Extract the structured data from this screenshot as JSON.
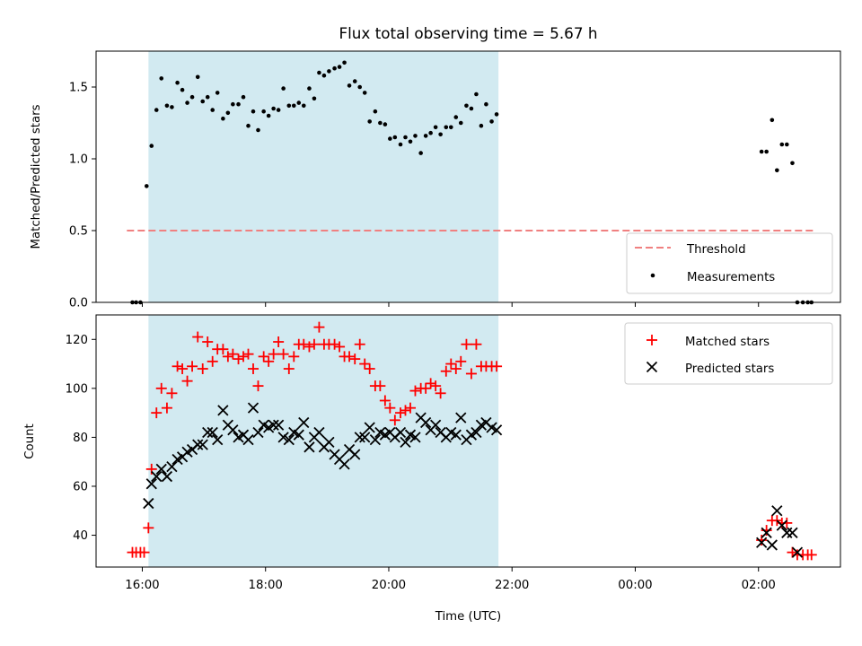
{
  "chart_data": {
    "type": "scatter",
    "title": "Flux total observing time = 5.67 h",
    "xlabel": "Time (UTC)",
    "x_unit": "hours",
    "xlim": [
      15.25,
      27.33
    ],
    "x_ticks": [
      {
        "value": 16,
        "label": "16:00"
      },
      {
        "value": 18,
        "label": "18:00"
      },
      {
        "value": 20,
        "label": "20:00"
      },
      {
        "value": 22,
        "label": "22:00"
      },
      {
        "value": 24,
        "label": "00:00"
      },
      {
        "value": 26,
        "label": "02:00"
      }
    ],
    "shaded_interval": [
      16.1,
      21.78
    ],
    "shaded_color": "#add8e6",
    "top": {
      "ylabel": "Matched/Predicted stars",
      "ylim": [
        0,
        1.75
      ],
      "y_ticks": [
        0.0,
        0.5,
        1.0,
        1.5
      ],
      "y_tick_labels": [
        "0.0",
        "0.5",
        "1.0",
        "1.5"
      ],
      "legend_position": "lower-right",
      "threshold": {
        "name": "Threshold",
        "value": 0.5,
        "x_range": [
          15.75,
          26.9
        ],
        "color": "#f08080"
      },
      "measurements": {
        "name": "Measurements",
        "color": "#000000",
        "x": [
          15.84,
          15.9,
          15.97,
          16.07,
          16.15,
          16.23,
          16.31,
          16.4,
          16.48,
          16.57,
          16.65,
          16.73,
          16.81,
          16.9,
          16.98,
          17.06,
          17.14,
          17.22,
          17.31,
          17.39,
          17.47,
          17.56,
          17.64,
          17.72,
          17.8,
          17.88,
          17.97,
          18.05,
          18.13,
          18.21,
          18.29,
          18.38,
          18.46,
          18.54,
          18.62,
          18.71,
          18.79,
          18.87,
          18.95,
          19.03,
          19.12,
          19.2,
          19.28,
          19.36,
          19.45,
          19.53,
          19.61,
          19.69,
          19.78,
          19.86,
          19.94,
          20.02,
          20.1,
          20.19,
          20.27,
          20.35,
          20.43,
          20.52,
          20.6,
          20.68,
          20.76,
          20.84,
          20.93,
          21.01,
          21.09,
          21.17,
          21.26,
          21.34,
          21.42,
          21.5,
          21.58,
          21.67,
          21.75,
          26.05,
          26.13,
          26.22,
          26.3,
          26.38,
          26.46,
          26.55,
          26.63,
          26.72,
          26.8,
          26.86
        ],
        "values": [
          0.0,
          0.0,
          0.0,
          0.81,
          1.09,
          1.34,
          1.56,
          1.37,
          1.36,
          1.53,
          1.48,
          1.39,
          1.43,
          1.57,
          1.4,
          1.43,
          1.34,
          1.46,
          1.28,
          1.32,
          1.38,
          1.38,
          1.43,
          1.23,
          1.33,
          1.2,
          1.33,
          1.3,
          1.35,
          1.34,
          1.49,
          1.37,
          1.37,
          1.39,
          1.37,
          1.49,
          1.42,
          1.6,
          1.58,
          1.61,
          1.63,
          1.64,
          1.67,
          1.51,
          1.54,
          1.5,
          1.46,
          1.26,
          1.33,
          1.25,
          1.24,
          1.14,
          1.15,
          1.1,
          1.15,
          1.12,
          1.16,
          1.04,
          1.16,
          1.18,
          1.22,
          1.17,
          1.22,
          1.22,
          1.29,
          1.25,
          1.37,
          1.35,
          1.45,
          1.23,
          1.38,
          1.26,
          1.31,
          1.05,
          1.05,
          1.27,
          0.92,
          1.1,
          1.1,
          0.97,
          0.0,
          0.0,
          0.0,
          0.0
        ]
      }
    },
    "bottom": {
      "ylabel": "Count",
      "ylim": [
        27,
        130
      ],
      "y_ticks": [
        40,
        60,
        80,
        100,
        120
      ],
      "y_tick_labels": [
        "40",
        "60",
        "80",
        "100",
        "120"
      ],
      "legend_position": "upper-right",
      "series": [
        {
          "name": "Matched stars",
          "marker": "plus",
          "color": "#ff0000",
          "x": [
            15.84,
            15.9,
            15.97,
            16.03,
            16.1,
            16.15,
            16.23,
            16.31,
            16.4,
            16.48,
            16.57,
            16.65,
            16.73,
            16.81,
            16.9,
            16.98,
            17.06,
            17.14,
            17.22,
            17.31,
            17.39,
            17.47,
            17.56,
            17.64,
            17.72,
            17.8,
            17.88,
            17.97,
            18.05,
            18.13,
            18.21,
            18.29,
            18.38,
            18.46,
            18.54,
            18.62,
            18.71,
            18.79,
            18.87,
            18.95,
            19.03,
            19.12,
            19.2,
            19.28,
            19.36,
            19.45,
            19.53,
            19.61,
            19.69,
            19.78,
            19.86,
            19.94,
            20.02,
            20.1,
            20.19,
            20.27,
            20.35,
            20.43,
            20.52,
            20.6,
            20.68,
            20.76,
            20.84,
            20.93,
            21.01,
            21.09,
            21.17,
            21.26,
            21.34,
            21.42,
            21.5,
            21.58,
            21.67,
            21.75,
            26.05,
            26.13,
            26.22,
            26.3,
            26.38,
            26.46,
            26.55,
            26.63,
            26.72,
            26.8,
            26.86
          ],
          "values": [
            33,
            33,
            33,
            33,
            43,
            67,
            90,
            100,
            92,
            98,
            109,
            108,
            103,
            109,
            121,
            108,
            119,
            111,
            116,
            116,
            113,
            114,
            112,
            113,
            114,
            108,
            101,
            113,
            111,
            114,
            119,
            114,
            108,
            113,
            118,
            118,
            117,
            118,
            125,
            118,
            118,
            118,
            117,
            113,
            113,
            112,
            118,
            110,
            108,
            101,
            101,
            95,
            92,
            87,
            90,
            91,
            92,
            99,
            100,
            100,
            102,
            101,
            98,
            107,
            110,
            108,
            111,
            118,
            106,
            118,
            109,
            109,
            109,
            109,
            38,
            42,
            46,
            46,
            45,
            45,
            33,
            32,
            32,
            32,
            32
          ]
        },
        {
          "name": "Predicted stars",
          "marker": "x",
          "color": "#000000",
          "x": [
            16.1,
            16.15,
            16.23,
            16.31,
            16.4,
            16.48,
            16.57,
            16.65,
            16.73,
            16.81,
            16.9,
            16.98,
            17.06,
            17.14,
            17.22,
            17.31,
            17.39,
            17.47,
            17.56,
            17.64,
            17.72,
            17.8,
            17.88,
            17.97,
            18.05,
            18.13,
            18.21,
            18.29,
            18.38,
            18.46,
            18.54,
            18.62,
            18.71,
            18.79,
            18.87,
            18.95,
            19.03,
            19.12,
            19.2,
            19.28,
            19.36,
            19.45,
            19.53,
            19.61,
            19.69,
            19.78,
            19.86,
            19.94,
            20.02,
            20.1,
            20.19,
            20.27,
            20.35,
            20.43,
            20.52,
            20.6,
            20.68,
            20.76,
            20.84,
            20.93,
            21.01,
            21.09,
            21.17,
            21.26,
            21.34,
            21.42,
            21.5,
            21.58,
            21.67,
            21.75,
            26.05,
            26.13,
            26.22,
            26.3,
            26.38,
            26.46,
            26.55,
            26.63
          ],
          "values": [
            53,
            61,
            64,
            67,
            64,
            68,
            71,
            72,
            74,
            75,
            77,
            77,
            82,
            82,
            79,
            91,
            85,
            83,
            80,
            81,
            79,
            92,
            82,
            85,
            84,
            85,
            85,
            80,
            79,
            82,
            81,
            86,
            76,
            80,
            82,
            76,
            78,
            73,
            71,
            69,
            75,
            73,
            80,
            80,
            84,
            79,
            82,
            81,
            82,
            80,
            82,
            78,
            81,
            80,
            88,
            86,
            83,
            85,
            82,
            80,
            82,
            81,
            88,
            79,
            81,
            82,
            85,
            86,
            84,
            83,
            37,
            41,
            36,
            50,
            44,
            41,
            41,
            33
          ]
        }
      ]
    }
  }
}
